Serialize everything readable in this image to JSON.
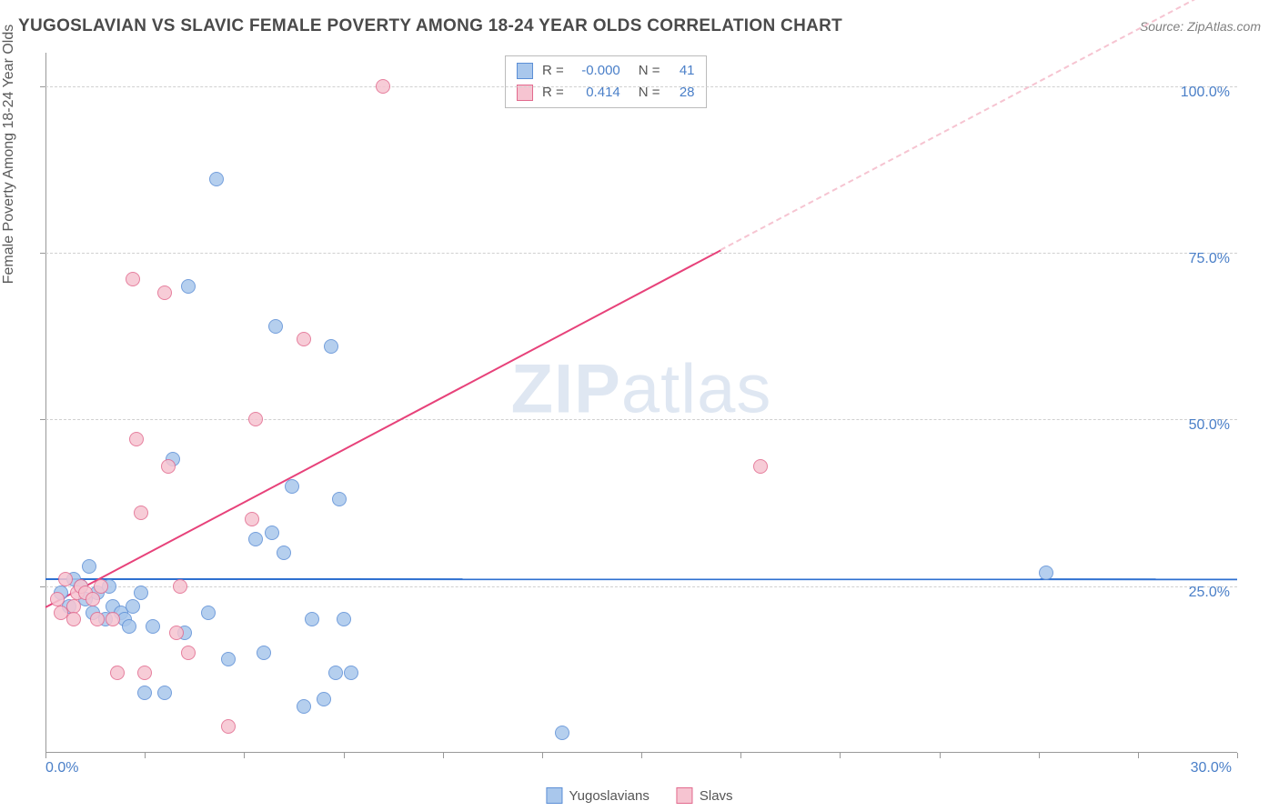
{
  "title": "YUGOSLAVIAN VS SLAVIC FEMALE POVERTY AMONG 18-24 YEAR OLDS CORRELATION CHART",
  "source_label": "Source: ZipAtlas.com",
  "y_axis_label": "Female Poverty Among 18-24 Year Olds",
  "watermark": {
    "bold": "ZIP",
    "rest": "atlas"
  },
  "chart": {
    "type": "scatter",
    "background_color": "#ffffff",
    "grid_color": "#d0d0d0",
    "axis_color": "#999999",
    "xlim": [
      0,
      30
    ],
    "ylim": [
      0,
      105
    ],
    "x_ticks": [
      0,
      2.5,
      5,
      7.5,
      10,
      12.5,
      15,
      17.5,
      20,
      22.5,
      25,
      27.5,
      30
    ],
    "y_gridlines": [
      25,
      50,
      75,
      100
    ],
    "x_tick_labels": [
      {
        "x": 0,
        "text": "0.0%"
      },
      {
        "x": 30,
        "text": "30.0%"
      }
    ],
    "y_tick_labels": [
      {
        "y": 25,
        "text": "25.0%"
      },
      {
        "y": 50,
        "text": "50.0%"
      },
      {
        "y": 75,
        "text": "75.0%"
      },
      {
        "y": 100,
        "text": "100.0%"
      }
    ],
    "series": [
      {
        "name": "Yugoslavians",
        "fill_color": "#a9c7ec",
        "stroke_color": "#5c8fd6",
        "trend": {
          "slope": -0.001,
          "intercept": 26.2,
          "solid_color": "#2d6fd0",
          "dash_color": "#a9c7ec",
          "solid_x_end": 30
        },
        "stats": {
          "R": "-0.000",
          "N": "41"
        },
        "points": [
          {
            "x": 0.4,
            "y": 24
          },
          {
            "x": 0.6,
            "y": 22
          },
          {
            "x": 0.7,
            "y": 26
          },
          {
            "x": 0.9,
            "y": 25
          },
          {
            "x": 1.0,
            "y": 23
          },
          {
            "x": 1.1,
            "y": 28
          },
          {
            "x": 1.2,
            "y": 21
          },
          {
            "x": 1.3,
            "y": 24
          },
          {
            "x": 1.5,
            "y": 20
          },
          {
            "x": 1.6,
            "y": 25
          },
          {
            "x": 1.7,
            "y": 22
          },
          {
            "x": 1.9,
            "y": 21
          },
          {
            "x": 2.0,
            "y": 20
          },
          {
            "x": 2.1,
            "y": 19
          },
          {
            "x": 2.2,
            "y": 22
          },
          {
            "x": 2.4,
            "y": 24
          },
          {
            "x": 2.5,
            "y": 9
          },
          {
            "x": 2.7,
            "y": 19
          },
          {
            "x": 3.0,
            "y": 9
          },
          {
            "x": 3.2,
            "y": 44
          },
          {
            "x": 3.5,
            "y": 18
          },
          {
            "x": 3.6,
            "y": 70
          },
          {
            "x": 4.1,
            "y": 21
          },
          {
            "x": 4.3,
            "y": 86
          },
          {
            "x": 4.6,
            "y": 14
          },
          {
            "x": 5.3,
            "y": 32
          },
          {
            "x": 5.5,
            "y": 15
          },
          {
            "x": 5.7,
            "y": 33
          },
          {
            "x": 5.8,
            "y": 64
          },
          {
            "x": 6.0,
            "y": 30
          },
          {
            "x": 6.2,
            "y": 40
          },
          {
            "x": 6.5,
            "y": 7
          },
          {
            "x": 6.7,
            "y": 20
          },
          {
            "x": 7.0,
            "y": 8
          },
          {
            "x": 7.2,
            "y": 61
          },
          {
            "x": 7.3,
            "y": 12
          },
          {
            "x": 7.4,
            "y": 38
          },
          {
            "x": 7.5,
            "y": 20
          },
          {
            "x": 7.7,
            "y": 12
          },
          {
            "x": 13.0,
            "y": 3
          },
          {
            "x": 25.2,
            "y": 27
          }
        ]
      },
      {
        "name": "Slavs",
        "fill_color": "#f6c4d1",
        "stroke_color": "#e26a8e",
        "trend": {
          "slope": 3.15,
          "intercept": 22,
          "solid_color": "#e7427a",
          "dash_color": "#f6c4d1",
          "solid_x_end": 17
        },
        "stats": {
          "R": "0.414",
          "N": "28"
        },
        "points": [
          {
            "x": 0.3,
            "y": 23
          },
          {
            "x": 0.4,
            "y": 21
          },
          {
            "x": 0.5,
            "y": 26
          },
          {
            "x": 0.7,
            "y": 22
          },
          {
            "x": 0.7,
            "y": 20
          },
          {
            "x": 0.8,
            "y": 24
          },
          {
            "x": 0.9,
            "y": 25
          },
          {
            "x": 1.0,
            "y": 24
          },
          {
            "x": 1.2,
            "y": 23
          },
          {
            "x": 1.3,
            "y": 20
          },
          {
            "x": 1.4,
            "y": 25
          },
          {
            "x": 1.7,
            "y": 20
          },
          {
            "x": 1.8,
            "y": 12
          },
          {
            "x": 2.2,
            "y": 71
          },
          {
            "x": 2.3,
            "y": 47
          },
          {
            "x": 2.4,
            "y": 36
          },
          {
            "x": 2.5,
            "y": 12
          },
          {
            "x": 3.0,
            "y": 69
          },
          {
            "x": 3.1,
            "y": 43
          },
          {
            "x": 3.3,
            "y": 18
          },
          {
            "x": 3.4,
            "y": 25
          },
          {
            "x": 3.6,
            "y": 15
          },
          {
            "x": 4.6,
            "y": 4
          },
          {
            "x": 5.2,
            "y": 35
          },
          {
            "x": 5.3,
            "y": 50
          },
          {
            "x": 6.5,
            "y": 62
          },
          {
            "x": 8.5,
            "y": 100
          },
          {
            "x": 18.0,
            "y": 43
          }
        ]
      }
    ]
  },
  "stats_box": {
    "rows": [
      {
        "swatch_fill": "#a9c7ec",
        "swatch_stroke": "#5c8fd6",
        "R_label": "R =",
        "R_val": "-0.000",
        "N_label": "N =",
        "N_val": "41"
      },
      {
        "swatch_fill": "#f6c4d1",
        "swatch_stroke": "#e26a8e",
        "R_label": "R =",
        "R_val": "0.414",
        "N_label": "N =",
        "N_val": "28"
      }
    ]
  },
  "legend": {
    "items": [
      {
        "swatch_fill": "#a9c7ec",
        "swatch_stroke": "#5c8fd6",
        "label": "Yugoslavians"
      },
      {
        "swatch_fill": "#f6c4d1",
        "swatch_stroke": "#e26a8e",
        "label": "Slavs"
      }
    ]
  }
}
